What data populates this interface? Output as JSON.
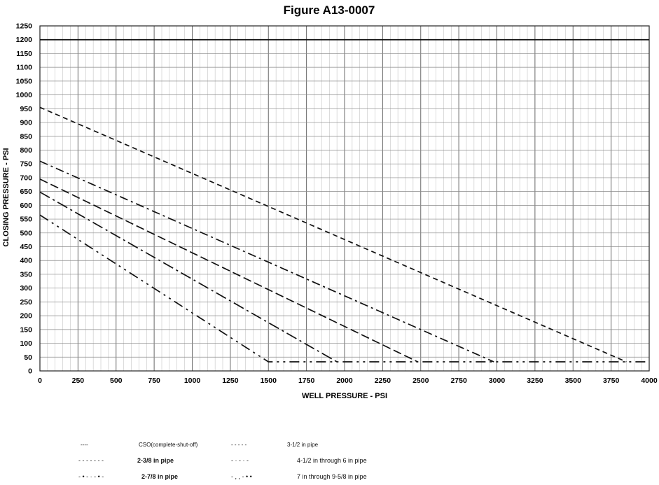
{
  "chart_data": {
    "type": "line",
    "title": "Figure A13-0007",
    "xlabel": "WELL PRESSURE - PSI",
    "ylabel": "CLOSING PRESSURE - PSI",
    "xlim": [
      0,
      4000
    ],
    "ylim": [
      0,
      1250
    ],
    "x_ticks": [
      "0",
      "250",
      "500",
      "750",
      "1000",
      "1250",
      "1500",
      "1750",
      "2000",
      "2250",
      "2500",
      "2750",
      "3000",
      "3250",
      "3500",
      "3750",
      "4000"
    ],
    "y_ticks": [
      "0",
      "50",
      "100",
      "150",
      "200",
      "250",
      "300",
      "350",
      "400",
      "450",
      "500",
      "550",
      "600",
      "650",
      "700",
      "750",
      "800",
      "850",
      "900",
      "950",
      "1000",
      "1050",
      "1100",
      "1150",
      "1200",
      "1250"
    ],
    "grid": true,
    "series": [
      {
        "name": "CSO(complete-shut-off)",
        "dash": "",
        "x": [
          0,
          4000
        ],
        "y": [
          1200,
          1200
        ]
      },
      {
        "name": "2-3/8 in  pipe",
        "dash": "14,6,3,6,3,6",
        "x": [
          0,
          1500,
          4000
        ],
        "y": [
          565,
          33,
          33
        ]
      },
      {
        "name": "2-7/8 in pipe",
        "dash": "16,5,3,5",
        "x": [
          0,
          1950
        ],
        "y": [
          648,
          33
        ]
      },
      {
        "name": "3-1/2 in pipe",
        "dash": "12,5",
        "x": [
          0,
          2480
        ],
        "y": [
          695,
          33
        ]
      },
      {
        "name": "4-1/2  in through 6 in pipe",
        "dash": "12,5,3,5",
        "x": [
          0,
          2980
        ],
        "y": [
          760,
          33
        ]
      },
      {
        "name": "7 in through 9-5/8 in pipe",
        "dash": "7,5",
        "x": [
          0,
          3850
        ],
        "y": [
          955,
          33
        ]
      }
    ]
  },
  "legend": {
    "cso": {
      "marker": "----",
      "label": "CSO(complete-shut-off)"
    },
    "p238": {
      "marker": "-  -  -  -  -  -  -",
      "label": "2-3/8 in  pipe"
    },
    "p278": {
      "marker": "-  •  -  ·  -  •  -",
      "label": "2-7/8 in pipe"
    },
    "p312": {
      "marker": "-    -    -    -    -",
      "label": "3-1/2 in pipe"
    },
    "p45": {
      "marker": "-    ·   -   ·   -",
      "label": "4-1/2  in through 6 in pipe"
    },
    "p7": {
      "marker": "-    ,  ,  -   •  •",
      "label": "7 in through 9-5/8 in pipe"
    }
  }
}
